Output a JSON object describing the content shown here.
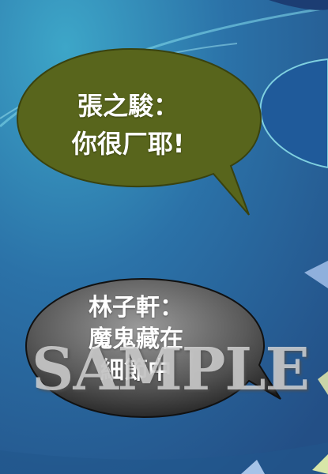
{
  "bubbles": [
    {
      "line1": "張之駿：",
      "line2": "你很厂耶!"
    },
    {
      "line1": "林子軒：",
      "line2": "魔鬼藏在",
      "line3": "細節中"
    }
  ],
  "watermark": "SAMPLE",
  "colors": {
    "background": "#2a6aa0",
    "green_bubble": "#58651c",
    "gray_bubble_light": "#8a8a8a",
    "gray_bubble_dark": "#1a1a1a",
    "blue_bubble": "#1f5a9a",
    "text": "#ffffff"
  }
}
